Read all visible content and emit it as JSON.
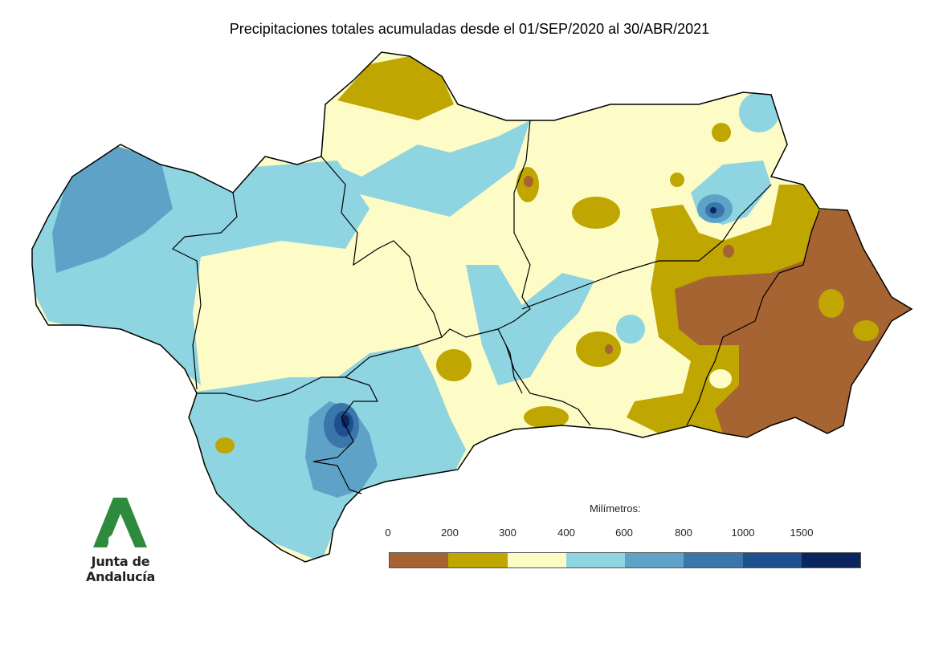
{
  "title": "Precipitaciones totales acumuladas desde el 01/SEP/2020 al 30/ABR/2021",
  "logo": {
    "text": "Junta de Andalucía",
    "color": "#2e8b3e"
  },
  "legend": {
    "title": "Milímetros:",
    "ticks": [
      "0",
      "200",
      "300",
      "400",
      "600",
      "800",
      "1000",
      "1500"
    ],
    "colors": [
      "#a56432",
      "#bfa600",
      "#fdfbc6",
      "#8ed5e1",
      "#5ea2c7",
      "#3a76a9",
      "#1e4f8e",
      "#0b255f"
    ]
  },
  "palette": {
    "c0_200": "#a56432",
    "c200_300": "#bfa600",
    "c300_400": "#fdfbc6",
    "c400_600": "#8ed5e1",
    "c600_800": "#5ea2c7",
    "c800_1000": "#3a76a9",
    "c1000_1500": "#1e4f8e",
    "c1500": "#0b255f",
    "border": "#000000"
  }
}
